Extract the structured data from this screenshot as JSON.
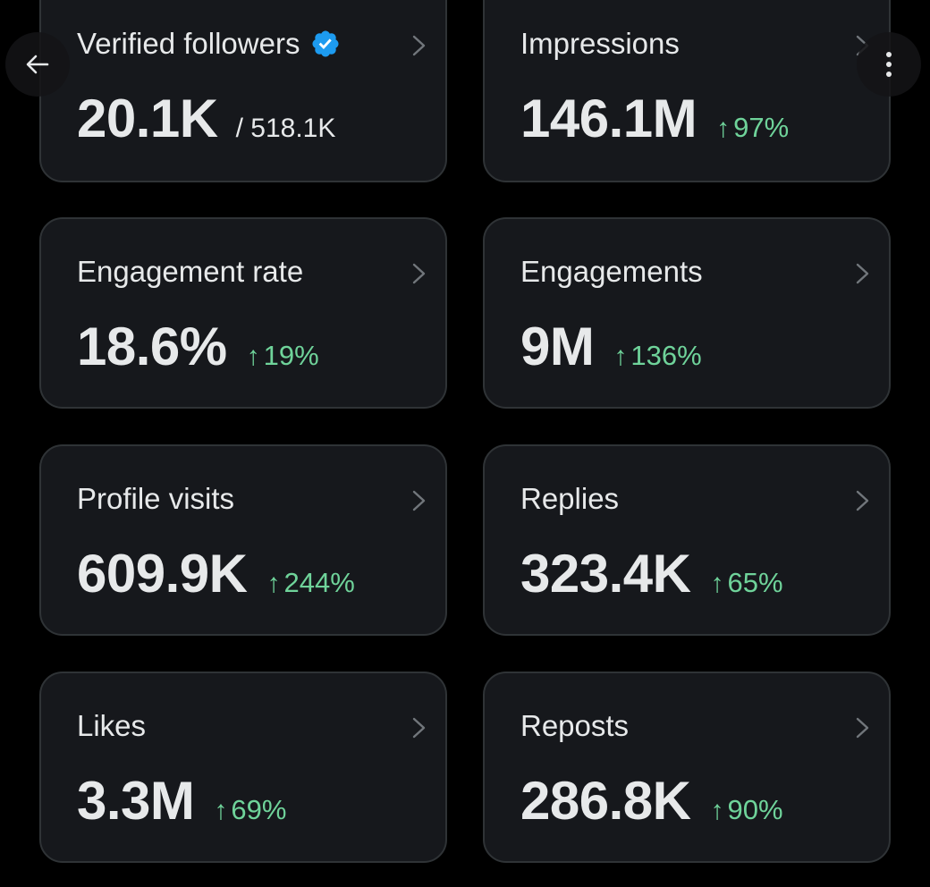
{
  "colors": {
    "background": "#000000",
    "card_background": "#16181c",
    "card_border": "#2f3336",
    "text": "#e7e9ea",
    "positive_change": "#6fd39a",
    "verified_badge": "#1d9bf0"
  },
  "header": {
    "back_icon": "arrow-left-icon",
    "more_icon": "vertical-dots-icon"
  },
  "cards": [
    {
      "id": "verified-followers",
      "title": "Verified followers",
      "icon": "verified-badge-icon",
      "value": "20.1K",
      "sub_value": "/ 518.1K",
      "change": null
    },
    {
      "id": "impressions",
      "title": "Impressions",
      "value": "146.1M",
      "change": "97%"
    },
    {
      "id": "engagement-rate",
      "title": "Engagement rate",
      "value": "18.6%",
      "change": "19%"
    },
    {
      "id": "engagements",
      "title": "Engagements",
      "value": "9M",
      "change": "136%"
    },
    {
      "id": "profile-visits",
      "title": "Profile visits",
      "value": "609.9K",
      "change": "244%"
    },
    {
      "id": "replies",
      "title": "Replies",
      "value": "323.4K",
      "change": "65%"
    },
    {
      "id": "likes",
      "title": "Likes",
      "value": "3.3M",
      "change": "69%"
    },
    {
      "id": "reposts",
      "title": "Reposts",
      "value": "286.8K",
      "change": "90%"
    }
  ],
  "change_arrow": "↑"
}
